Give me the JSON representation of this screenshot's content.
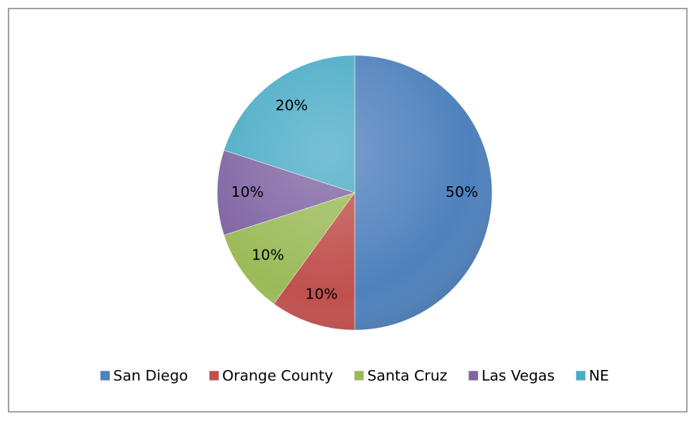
{
  "chart_data": {
    "type": "pie",
    "categories": [
      "San Diego",
      "Orange County",
      "Santa Cruz",
      "Las Vegas",
      "NE"
    ],
    "values": [
      50,
      10,
      10,
      10,
      20
    ],
    "value_labels": [
      "50%",
      "10%",
      "10%",
      "10%",
      "20%"
    ],
    "colors": [
      "#4f81bd",
      "#c0504d",
      "#9bbb59",
      "#8064a2",
      "#4bacc6"
    ],
    "legend": "bottom"
  }
}
